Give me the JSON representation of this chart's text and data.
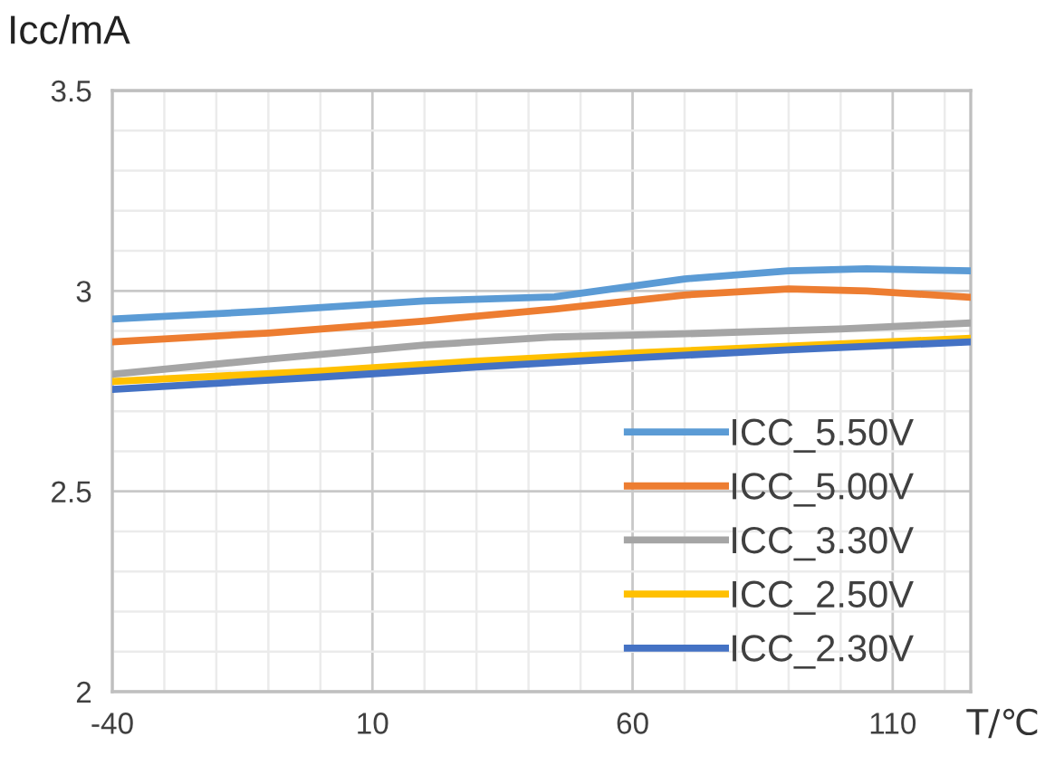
{
  "chart_data": {
    "type": "line",
    "xlabel": "T/℃",
    "ylabel": "Icc/mA",
    "xlim": [
      -40,
      125
    ],
    "xticks": [
      -40,
      10,
      60,
      110
    ],
    "ylim": [
      2,
      3.5
    ],
    "yticks": [
      2,
      2.5,
      3,
      3.5
    ],
    "grid": true,
    "legend": "bottom right",
    "marker": "none",
    "line_style": "solid",
    "series": [
      {
        "name": "ICC_5.50V",
        "color": "#5b9bd5",
        "x": [
          -40,
          -10,
          20,
          45,
          70,
          90,
          105,
          125
        ],
        "values": [
          2.93,
          2.95,
          2.975,
          2.985,
          3.03,
          3.05,
          3.055,
          3.05
        ]
      },
      {
        "name": "ICC_5.00V",
        "color": "#ed7d31",
        "x": [
          -40,
          -10,
          20,
          45,
          70,
          90,
          105,
          125
        ],
        "values": [
          2.873,
          2.895,
          2.925,
          2.955,
          2.99,
          3.005,
          3.0,
          2.984
        ]
      },
      {
        "name": "ICC_3.30V",
        "color": "#a5a5a5",
        "x": [
          -40,
          -10,
          20,
          45,
          70,
          100,
          125
        ],
        "values": [
          2.792,
          2.83,
          2.865,
          2.885,
          2.893,
          2.905,
          2.92
        ]
      },
      {
        "name": "ICC_2.50V",
        "color": "#ffc000",
        "x": [
          -40,
          0,
          30,
          60,
          90,
          125
        ],
        "values": [
          2.774,
          2.8,
          2.825,
          2.845,
          2.862,
          2.882
        ]
      },
      {
        "name": "ICC_2.30V",
        "color": "#4472c4",
        "x": [
          -40,
          0,
          30,
          60,
          90,
          125
        ],
        "values": [
          2.754,
          2.785,
          2.81,
          2.833,
          2.853,
          2.873
        ]
      }
    ]
  }
}
